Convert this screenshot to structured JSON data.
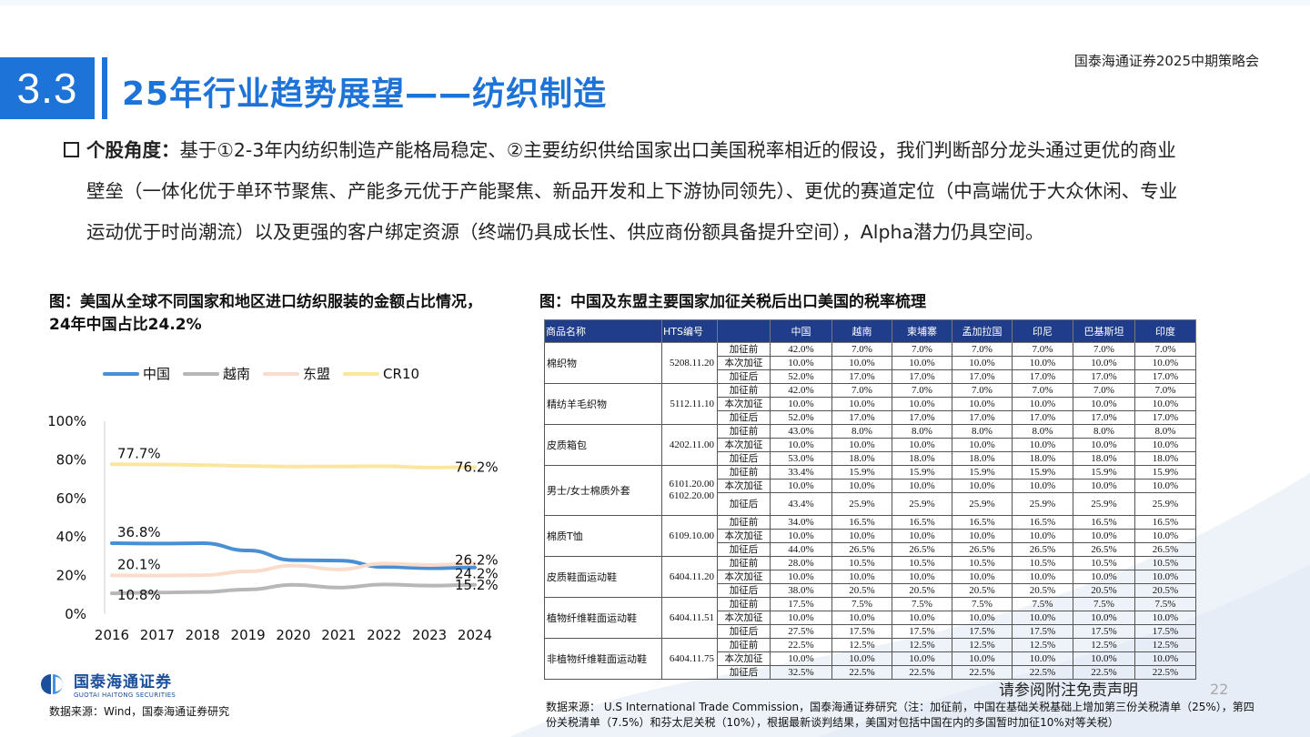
{
  "header": {
    "firm_tag": "国泰海通证券2025中期策略会",
    "section_number": "3.3",
    "section_title": "25年行业趋势展望——纺织制造"
  },
  "body": {
    "lead": "个股角度：",
    "text": "基于①2-3年内纺织制造产能格局稳定、②主要纺织供给国家出口美国税率相近的假设，我们判断部分龙头通过更优的商业壁垒（一体化优于单环节聚焦、产能多元优于产能聚焦、新品开发和上下游协同领先）、更优的赛道定位（中高端优于大众休闲、专业运动优于时尚潮流）以及更强的客户绑定资源（终端仍具成长性、供应商份额具备提升空间），Alpha潜力仍具空间。"
  },
  "left_chart": {
    "title": "图：美国从全球不同国家和地区进口纺织服装的金额占比情况，24年中国占比24.2%",
    "source": "数据来源：Wind，国泰海通证券研究"
  },
  "chart_data": {
    "type": "line",
    "x": [
      "2016",
      "2017",
      "2018",
      "2019",
      "2020",
      "2021",
      "2022",
      "2023",
      "2024"
    ],
    "ylim": [
      0,
      100
    ],
    "yticks": [
      "0%",
      "20%",
      "40%",
      "60%",
      "80%",
      "100%"
    ],
    "legend_position": "top-left",
    "grid": false,
    "series": [
      {
        "name": "中国",
        "color": "#4a8fd4",
        "values": [
          36.8,
          36.6,
          36.8,
          33.0,
          28.0,
          27.8,
          24.5,
          23.8,
          24.2
        ]
      },
      {
        "name": "越南",
        "color": "#b7b7b7",
        "values": [
          10.8,
          11.2,
          11.5,
          12.8,
          15.2,
          13.8,
          15.4,
          14.8,
          15.2
        ]
      },
      {
        "name": "东盟",
        "color": "#f9dccb",
        "values": [
          20.1,
          20.0,
          20.2,
          22.2,
          25.2,
          23.2,
          26.2,
          25.5,
          26.2
        ]
      },
      {
        "name": "CR10",
        "color": "#fbe6a1",
        "values": [
          77.7,
          77.6,
          77.3,
          76.8,
          76.5,
          76.6,
          76.7,
          76.0,
          76.2
        ]
      }
    ],
    "labels": [
      {
        "series": "CR10",
        "index": 0,
        "text": "77.7%"
      },
      {
        "series": "CR10",
        "index": 8,
        "text": "76.2%"
      },
      {
        "series": "中国",
        "index": 0,
        "text": "36.8%"
      },
      {
        "series": "中国",
        "index": 8,
        "text": "24.2%"
      },
      {
        "series": "东盟",
        "index": 0,
        "text": "20.1%"
      },
      {
        "series": "东盟",
        "index": 8,
        "text": "26.2%"
      },
      {
        "series": "越南",
        "index": 0,
        "text": "10.8%"
      },
      {
        "series": "越南",
        "index": 8,
        "text": "15.2%"
      }
    ]
  },
  "right_table": {
    "title": "图：中国及东盟主要国家加征关税后出口美国的税率梳理",
    "headers": [
      "商品名称",
      "HTS编号",
      "",
      "中国",
      "越南",
      "柬埔寨",
      "孟加拉国",
      "印尼",
      "巴基斯坦",
      "印度"
    ],
    "stages": [
      "加征前",
      "本次加征",
      "加征后"
    ],
    "rows": [
      {
        "name": "棉织物",
        "hts": "5208.11.20",
        "data": [
          [
            "42.0%",
            "7.0%",
            "7.0%",
            "7.0%",
            "7.0%",
            "7.0%",
            "7.0%"
          ],
          [
            "10.0%",
            "10.0%",
            "10.0%",
            "10.0%",
            "10.0%",
            "10.0%",
            "10.0%"
          ],
          [
            "52.0%",
            "17.0%",
            "17.0%",
            "17.0%",
            "17.0%",
            "17.0%",
            "17.0%"
          ]
        ]
      },
      {
        "name": "精纺羊毛织物",
        "hts": "5112.11.10",
        "data": [
          [
            "42.0%",
            "7.0%",
            "7.0%",
            "7.0%",
            "7.0%",
            "7.0%",
            "7.0%"
          ],
          [
            "10.0%",
            "10.0%",
            "10.0%",
            "10.0%",
            "10.0%",
            "10.0%",
            "10.0%"
          ],
          [
            "52.0%",
            "17.0%",
            "17.0%",
            "17.0%",
            "17.0%",
            "17.0%",
            "17.0%"
          ]
        ]
      },
      {
        "name": "皮质箱包",
        "hts": "4202.11.00",
        "data": [
          [
            "43.0%",
            "8.0%",
            "8.0%",
            "8.0%",
            "8.0%",
            "8.0%",
            "8.0%"
          ],
          [
            "10.0%",
            "10.0%",
            "10.0%",
            "10.0%",
            "10.0%",
            "10.0%",
            "10.0%"
          ],
          [
            "53.0%",
            "18.0%",
            "18.0%",
            "18.0%",
            "18.0%",
            "18.0%",
            "18.0%"
          ]
        ]
      },
      {
        "name": "男士/女士棉质外套",
        "hts": "6101.20.00 6102.20.00",
        "data": [
          [
            "33.4%",
            "15.9%",
            "15.9%",
            "15.9%",
            "15.9%",
            "15.9%",
            "15.9%"
          ],
          [
            "10.0%",
            "10.0%",
            "10.0%",
            "10.0%",
            "10.0%",
            "10.0%",
            "10.0%"
          ],
          [
            "43.4%",
            "25.9%",
            "25.9%",
            "25.9%",
            "25.9%",
            "25.9%",
            "25.9%"
          ]
        ]
      },
      {
        "name": "棉质T恤",
        "hts": "6109.10.00",
        "data": [
          [
            "34.0%",
            "16.5%",
            "16.5%",
            "16.5%",
            "16.5%",
            "16.5%",
            "16.5%"
          ],
          [
            "10.0%",
            "10.0%",
            "10.0%",
            "10.0%",
            "10.0%",
            "10.0%",
            "10.0%"
          ],
          [
            "44.0%",
            "26.5%",
            "26.5%",
            "26.5%",
            "26.5%",
            "26.5%",
            "26.5%"
          ]
        ]
      },
      {
        "name": "皮质鞋面运动鞋",
        "hts": "6404.11.20",
        "data": [
          [
            "28.0%",
            "10.5%",
            "10.5%",
            "10.5%",
            "10.5%",
            "10.5%",
            "10.5%"
          ],
          [
            "10.0%",
            "10.0%",
            "10.0%",
            "10.0%",
            "10.0%",
            "10.0%",
            "10.0%"
          ],
          [
            "38.0%",
            "20.5%",
            "20.5%",
            "20.5%",
            "20.5%",
            "20.5%",
            "20.5%"
          ]
        ]
      },
      {
        "name": "植物纤维鞋面运动鞋",
        "hts": "6404.11.51",
        "data": [
          [
            "17.5%",
            "7.5%",
            "7.5%",
            "7.5%",
            "7.5%",
            "7.5%",
            "7.5%"
          ],
          [
            "10.0%",
            "10.0%",
            "10.0%",
            "10.0%",
            "10.0%",
            "10.0%",
            "10.0%"
          ],
          [
            "27.5%",
            "17.5%",
            "17.5%",
            "17.5%",
            "17.5%",
            "17.5%",
            "17.5%"
          ]
        ]
      },
      {
        "name": "非植物纤维鞋面运动鞋",
        "hts": "6404.11.75",
        "data": [
          [
            "22.5%",
            "12.5%",
            "12.5%",
            "12.5%",
            "12.5%",
            "12.5%",
            "12.5%"
          ],
          [
            "10.0%",
            "10.0%",
            "10.0%",
            "10.0%",
            "10.0%",
            "10.0%",
            "10.0%"
          ],
          [
            "32.5%",
            "22.5%",
            "22.5%",
            "22.5%",
            "22.5%",
            "22.5%",
            "22.5%"
          ]
        ]
      }
    ],
    "source": "数据来源： U.S International Trade Commission，国泰海通证券研究（注：加征前，中国在基础关税基础上增加第三份关税清单（25%），第四份关税清单（7.5%）和芬太尼关税（10%），根据最新谈判结果，美国对包括中国在内的多国暂时加征10%对等关税）"
  },
  "footer": {
    "disclaimer": "请参阅附注免责声明",
    "page": "22",
    "logo_cn": "国泰海通证券",
    "logo_en": "GUOTAI HAITONG SECURITIES"
  },
  "colors": {
    "accent": "#1e73d8",
    "table_header": "#1f3d8a"
  }
}
